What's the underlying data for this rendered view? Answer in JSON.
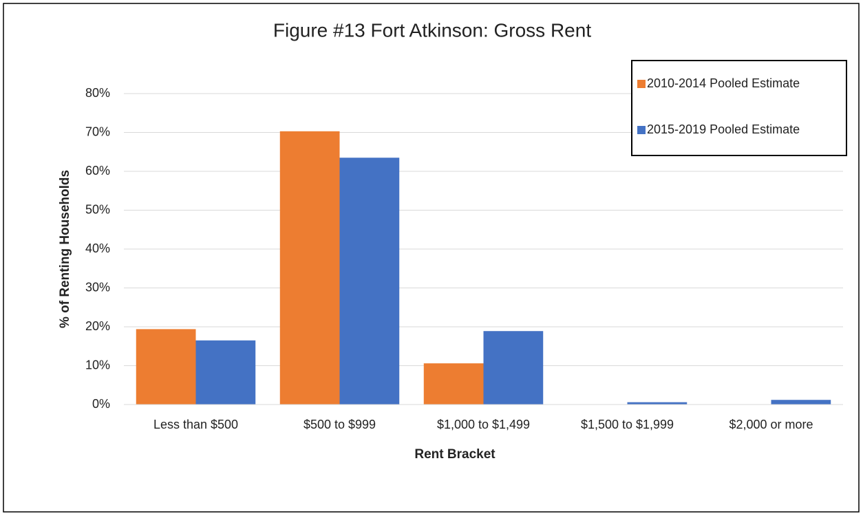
{
  "chart_data": {
    "type": "bar",
    "title": "Figure #13  Fort Atkinson: Gross Rent",
    "x_label": "Rent Bracket",
    "y_label": "% of Renting Households",
    "categories": [
      "Less than $500",
      "$500 to $999",
      "$1,000 to $1,499",
      "$1,500 to $1,999",
      "$2,000 or more"
    ],
    "series": [
      {
        "name": "2010-2014 Pooled Estimate",
        "color": "#ed7d31",
        "values": [
          19.4,
          70.3,
          10.6,
          0,
          0
        ]
      },
      {
        "name": "2015-2019 Pooled Estimate",
        "color": "#4472c4",
        "values": [
          16.5,
          63.5,
          18.9,
          0.6,
          1.2
        ]
      }
    ],
    "ylim": [
      0,
      80
    ],
    "yticks": [
      {
        "value": 0,
        "label": "0%"
      },
      {
        "value": 10,
        "label": "10%"
      },
      {
        "value": 20,
        "label": "20%"
      },
      {
        "value": 30,
        "label": "30%"
      },
      {
        "value": 40,
        "label": "40%"
      },
      {
        "value": 50,
        "label": "50%"
      },
      {
        "value": 60,
        "label": "60%"
      },
      {
        "value": 70,
        "label": "70%"
      },
      {
        "value": 80,
        "label": "80%"
      }
    ],
    "grid": true,
    "legend": "upper right"
  }
}
